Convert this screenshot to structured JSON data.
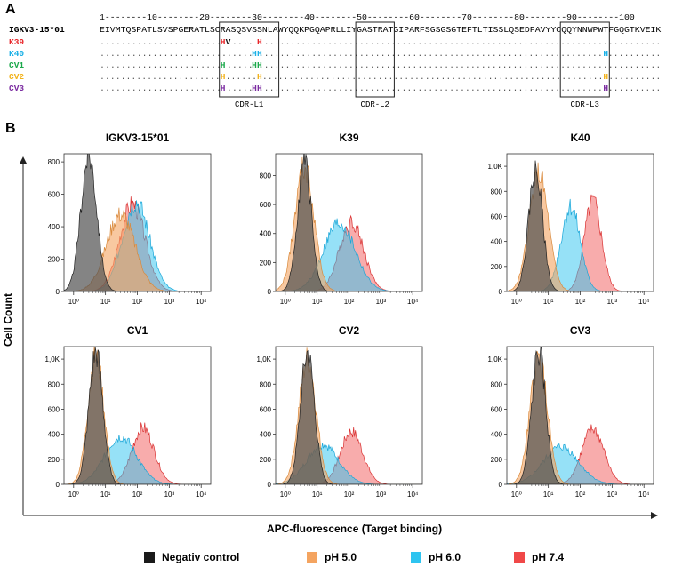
{
  "panel_a": {
    "letter": "A",
    "ruler": "1--------10--------20--------30--------40--------50--------60--------70--------80--------90--------100",
    "reference_name": "IGKV3-15*01",
    "reference_sequence": "EIVMTQSPATLSVSPGERATLSCRASQSVSSNLAWYQQKPGQAPRLLIYGASTRATGIPARFSGSGSGTEFTLTISSLQSEDFAVYYCQQYNNWPWTFGQGTKVEIK",
    "variants": [
      {
        "name": "K39",
        "color": "#e8262a",
        "mutations": [
          {
            "pos": 24,
            "aa": "H"
          },
          {
            "pos": 25,
            "aa": "V"
          },
          {
            "pos": 31,
            "aa": "H"
          }
        ]
      },
      {
        "name": "K40",
        "color": "#1ab0e6",
        "mutations": [
          {
            "pos": 30,
            "aa": "H"
          },
          {
            "pos": 31,
            "aa": "H"
          },
          {
            "pos": 97,
            "aa": "H"
          }
        ]
      },
      {
        "name": "CV1",
        "color": "#1aa84a",
        "mutations": [
          {
            "pos": 24,
            "aa": "H"
          },
          {
            "pos": 30,
            "aa": "H"
          },
          {
            "pos": 31,
            "aa": "H"
          }
        ]
      },
      {
        "name": "CV2",
        "color": "#f2b21a",
        "mutations": [
          {
            "pos": 24,
            "aa": "H"
          },
          {
            "pos": 31,
            "aa": "H"
          },
          {
            "pos": 97,
            "aa": "H"
          }
        ]
      },
      {
        "name": "CV3",
        "color": "#7a2aa0",
        "mutations": [
          {
            "pos": 24,
            "aa": "H"
          },
          {
            "pos": 30,
            "aa": "H"
          },
          {
            "pos": 31,
            "aa": "H"
          },
          {
            "pos": 97,
            "aa": "H"
          }
        ]
      }
    ],
    "cdr_boxes": [
      {
        "label": "CDR-L1",
        "start": 24,
        "end": 34
      },
      {
        "label": "CDR-L2",
        "start": 50,
        "end": 56
      },
      {
        "label": "CDR-L3",
        "start": 89,
        "end": 97
      }
    ]
  },
  "panel_b": {
    "letter": "B",
    "y_axis_label": "Cell Count",
    "x_axis_label": "APC-fluorescence (Target binding)"
  },
  "chart_data": [
    {
      "type": "area",
      "title": "IGKV3-15*01",
      "xscale": "log",
      "xlim": [
        0.5,
        20000
      ],
      "ylim": [
        0,
        850
      ],
      "yticks": [
        0,
        200,
        400,
        600,
        800
      ],
      "ytick_labels": [
        "0",
        "200",
        "400",
        "600",
        "800"
      ],
      "xticks": [
        1,
        10,
        100,
        1000,
        10000
      ],
      "xtick_labels": [
        "10⁰",
        "10¹",
        "10²",
        "10³",
        "10⁴"
      ],
      "series": [
        {
          "name": "Negativ control",
          "peak_x": 3,
          "peak_y": 840,
          "width": 0.25
        },
        {
          "name": "pH 5.0",
          "peak_x": 30,
          "peak_y": 480,
          "width": 0.45
        },
        {
          "name": "pH 6.0",
          "peak_x": 90,
          "peak_y": 560,
          "width": 0.42
        },
        {
          "name": "pH 7.4",
          "peak_x": 70,
          "peak_y": 540,
          "width": 0.4
        }
      ]
    },
    {
      "type": "area",
      "title": "K39",
      "xscale": "log",
      "xlim": [
        0.5,
        20000
      ],
      "ylim": [
        0,
        950
      ],
      "yticks": [
        0,
        200,
        400,
        600,
        800
      ],
      "ytick_labels": [
        "0",
        "200",
        "400",
        "600",
        "800"
      ],
      "xticks": [
        1,
        10,
        100,
        1000,
        10000
      ],
      "xtick_labels": [
        "10⁰",
        "10¹",
        "10²",
        "10³",
        "10⁴"
      ],
      "series": [
        {
          "name": "Negativ control",
          "peak_x": 4,
          "peak_y": 880,
          "width": 0.22
        },
        {
          "name": "pH 5.0",
          "peak_x": 4,
          "peak_y": 850,
          "width": 0.3
        },
        {
          "name": "pH 6.0",
          "peak_x": 50,
          "peak_y": 470,
          "width": 0.5
        },
        {
          "name": "pH 7.4",
          "peak_x": 120,
          "peak_y": 480,
          "width": 0.38
        }
      ]
    },
    {
      "type": "area",
      "title": "K40",
      "xscale": "log",
      "xlim": [
        0.5,
        20000
      ],
      "ylim": [
        0,
        1100
      ],
      "yticks": [
        0,
        200,
        400,
        600,
        800,
        1000
      ],
      "ytick_labels": [
        "0",
        "200",
        "400",
        "600",
        "800",
        "1,0K"
      ],
      "xticks": [
        1,
        10,
        100,
        1000,
        10000
      ],
      "xtick_labels": [
        "10⁰",
        "10¹",
        "10²",
        "10³",
        "10⁴"
      ],
      "series": [
        {
          "name": "Negativ control",
          "peak_x": 4,
          "peak_y": 960,
          "width": 0.22
        },
        {
          "name": "pH 5.0",
          "peak_x": 5,
          "peak_y": 940,
          "width": 0.3
        },
        {
          "name": "pH 6.0",
          "peak_x": 50,
          "peak_y": 680,
          "width": 0.3
        },
        {
          "name": "pH 7.4",
          "peak_x": 250,
          "peak_y": 720,
          "width": 0.27
        }
      ]
    },
    {
      "type": "area",
      "title": "CV1",
      "xscale": "log",
      "xlim": [
        0.5,
        20000
      ],
      "ylim": [
        0,
        1100
      ],
      "yticks": [
        0,
        200,
        400,
        600,
        800,
        1000
      ],
      "ytick_labels": [
        "0",
        "200",
        "400",
        "600",
        "800",
        "1,0K"
      ],
      "xticks": [
        1,
        10,
        100,
        1000,
        10000
      ],
      "xtick_labels": [
        "10⁰",
        "10¹",
        "10²",
        "10³",
        "10⁴"
      ],
      "series": [
        {
          "name": "Negativ control",
          "peak_x": 5,
          "peak_y": 1050,
          "width": 0.22
        },
        {
          "name": "pH 5.0",
          "peak_x": 5,
          "peak_y": 1020,
          "width": 0.25
        },
        {
          "name": "pH 6.0",
          "peak_x": 30,
          "peak_y": 380,
          "width": 0.5
        },
        {
          "name": "pH 7.4",
          "peak_x": 150,
          "peak_y": 450,
          "width": 0.35
        }
      ]
    },
    {
      "type": "area",
      "title": "CV2",
      "xscale": "log",
      "xlim": [
        0.5,
        20000
      ],
      "ylim": [
        0,
        1100
      ],
      "yticks": [
        0,
        200,
        400,
        600,
        800,
        1000
      ],
      "ytick_labels": [
        "0",
        "200",
        "400",
        "600",
        "800",
        "1,0K"
      ],
      "xticks": [
        1,
        10,
        100,
        1000,
        10000
      ],
      "xtick_labels": [
        "10⁰",
        "10¹",
        "10²",
        "10³",
        "10⁴"
      ],
      "series": [
        {
          "name": "Negativ control",
          "peak_x": 5,
          "peak_y": 1050,
          "width": 0.22
        },
        {
          "name": "pH 5.0",
          "peak_x": 5,
          "peak_y": 1000,
          "width": 0.27
        },
        {
          "name": "pH 6.0",
          "peak_x": 15,
          "peak_y": 320,
          "width": 0.5
        },
        {
          "name": "pH 7.4",
          "peak_x": 120,
          "peak_y": 420,
          "width": 0.35
        }
      ]
    },
    {
      "type": "area",
      "title": "CV3",
      "xscale": "log",
      "xlim": [
        0.5,
        20000
      ],
      "ylim": [
        0,
        1100
      ],
      "yticks": [
        0,
        200,
        400,
        600,
        800,
        1000
      ],
      "ytick_labels": [
        "0",
        "200",
        "400",
        "600",
        "800",
        "1,0K"
      ],
      "xticks": [
        1,
        10,
        100,
        1000,
        10000
      ],
      "xtick_labels": [
        "10⁰",
        "10¹",
        "10²",
        "10³",
        "10⁴"
      ],
      "series": [
        {
          "name": "Negativ control",
          "peak_x": 5,
          "peak_y": 1050,
          "width": 0.22
        },
        {
          "name": "pH 5.0",
          "peak_x": 5,
          "peak_y": 1000,
          "width": 0.27
        },
        {
          "name": "pH 6.0",
          "peak_x": 25,
          "peak_y": 300,
          "width": 0.55
        },
        {
          "name": "pH 7.4",
          "peak_x": 250,
          "peak_y": 440,
          "width": 0.35
        }
      ]
    }
  ],
  "legend": [
    {
      "name": "Negativ control",
      "color": "#1a1a1a"
    },
    {
      "name": "pH 5.0",
      "color": "#f4a460"
    },
    {
      "name": "pH 6.0",
      "color": "#2ec4f0"
    },
    {
      "name": "pH 7.4",
      "color": "#f04848"
    }
  ],
  "series_fill": {
    "Negativ control": "rgba(80,80,80,0.7)",
    "pH 5.0": "rgba(244,164,96,0.6)",
    "pH 6.0": "rgba(46,196,240,0.5)",
    "pH 7.4": "rgba(240,72,72,0.45)"
  }
}
